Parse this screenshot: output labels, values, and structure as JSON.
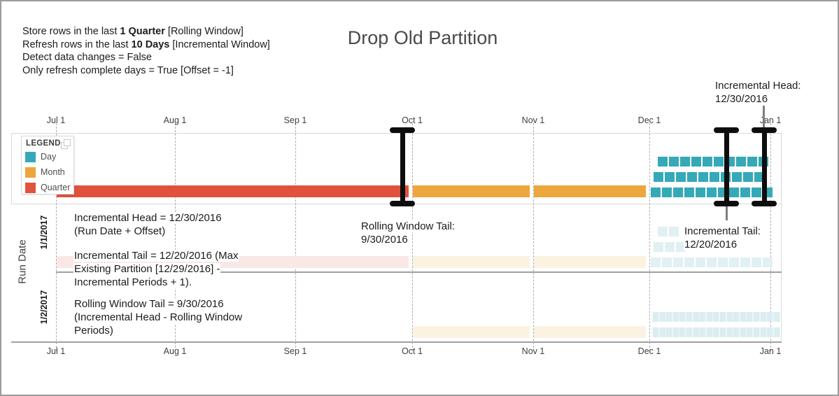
{
  "header": {
    "title": "Drop Old Partition",
    "config_lines": [
      {
        "pre": "Store rows in the last ",
        "bold": "1 Quarter",
        "post": " [Rolling Window]"
      },
      {
        "pre": "Refresh rows in the last ",
        "bold": "10 Days",
        "post": " [Incremental Window]"
      },
      {
        "pre": "Detect data changes = False",
        "bold": "",
        "post": ""
      },
      {
        "pre": "Only refresh complete days = True [Offset = -1]",
        "bold": "",
        "post": ""
      }
    ]
  },
  "legend": {
    "title": "LEGEND",
    "items": [
      {
        "label": "Day",
        "color": "#35A9B7"
      },
      {
        "label": "Month",
        "color": "#EDA63C"
      },
      {
        "label": "Quarter",
        "color": "#E1523E"
      }
    ]
  },
  "annotations": {
    "incremental_head_callout": {
      "lines": [
        "Incremental Head:",
        "12/30/2016"
      ]
    },
    "incremental_head_note": {
      "lines": [
        "Incremental Head = 12/30/2016",
        "(Run Date + Offset)"
      ]
    },
    "incremental_tail_note": {
      "lines": [
        "Incremental Tail = 12/20/2016 (Max",
        "Existing Partition [12/29/2016] -",
        "Incremental Periods + 1)."
      ]
    },
    "rolling_window_note": {
      "lines": [
        "Rolling Window Tail = 9/30/2016",
        "(Incremental Head - Rolling Window",
        "Periods)"
      ]
    },
    "rolling_window_callout": {
      "lines": [
        "Rolling Window Tail:",
        "9/30/2016"
      ]
    },
    "incremental_tail_callout": {
      "lines": [
        "Incremental Tail:",
        "12/20/2016"
      ]
    }
  },
  "chart_data": {
    "type": "timeline-partition-chart",
    "title": "Drop Old Partition",
    "x_axis": {
      "tick_labels": [
        "Jul 1",
        "Aug 1",
        "Sep 1",
        "Oct 1",
        "Nov 1",
        "Dec 1",
        "Jan 1"
      ],
      "position": "top and bottom",
      "gridlines": "dashed vertical"
    },
    "y_axis": {
      "label": "Run Date",
      "categories": [
        "1/1/2017",
        "1/2/2017"
      ]
    },
    "colors": {
      "day": "#35A9B7",
      "month": "#EDA63C",
      "quarter": "#E1523E",
      "day_faded": "#E1F0F3",
      "day_faded_strip": "#EDF6F8",
      "day_faded_dense": "#DCEDF1",
      "month_faded": "#FCF2E2",
      "quarter_faded": "#FAE8E6"
    },
    "partition_band": {
      "segments": [
        {
          "kind": "quarter",
          "from": "Jul 1",
          "to": "Oct 1"
        },
        {
          "kind": "month",
          "from": "Oct 1",
          "to": "Nov 1"
        },
        {
          "kind": "month",
          "from": "Nov 1",
          "to": "Dec 1"
        }
      ],
      "day_rows": [
        11,
        10,
        10
      ],
      "day_month": "December 2016"
    },
    "markers": [
      {
        "name": "rolling-window-tail",
        "date": "9/30/2016"
      },
      {
        "name": "incremental-tail",
        "date": "12/20/2016"
      },
      {
        "name": "incremental-head",
        "date": "12/30/2016"
      }
    ],
    "run_rows": [
      {
        "date": "1/1/2017",
        "segments": [
          {
            "kind": "quarter",
            "from": "Jul 1",
            "to": "Oct 1"
          },
          {
            "kind": "month",
            "from": "Oct 1",
            "to": "Nov 1"
          },
          {
            "kind": "month",
            "from": "Nov 1",
            "to": "Dec 1"
          }
        ],
        "day_rows": [
          11,
          3,
          2
        ]
      },
      {
        "date": "1/2/2017",
        "segments": [
          {
            "kind": "month",
            "from": "Oct 1",
            "to": "Nov 1"
          },
          {
            "kind": "month",
            "from": "Nov 1",
            "to": "Dec 1"
          }
        ],
        "dense_day_rows": [
          19,
          19
        ]
      }
    ]
  }
}
